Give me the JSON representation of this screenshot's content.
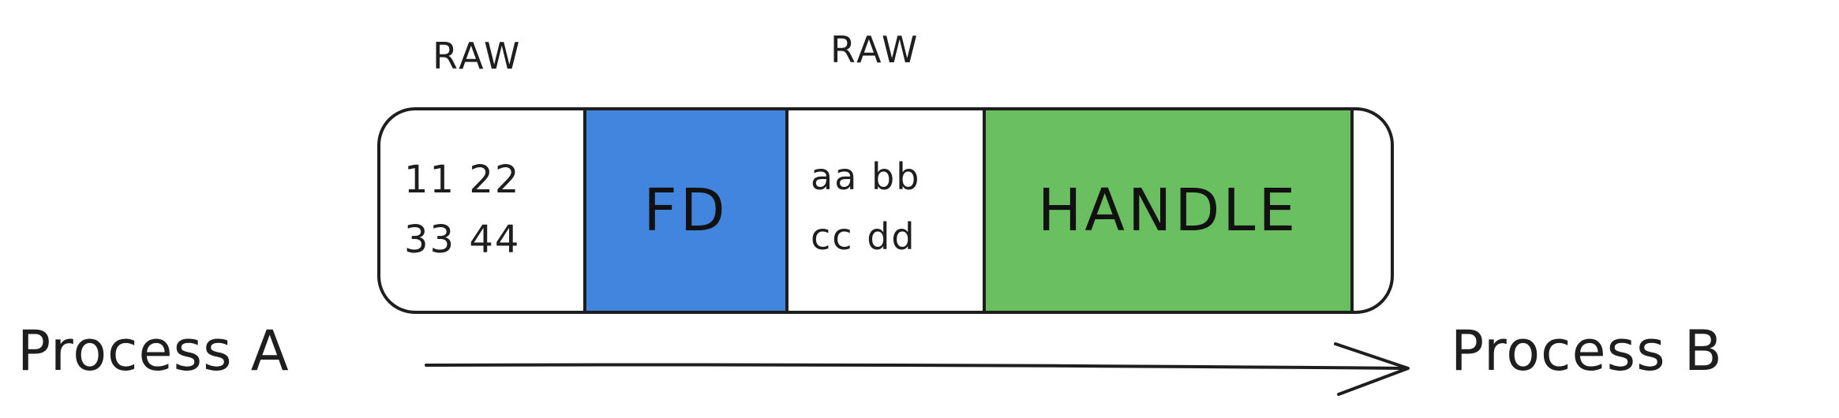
{
  "diagram": {
    "segments": [
      {
        "id": "raw1",
        "header": "RAW",
        "lines": [
          "11 22",
          "33 44"
        ]
      },
      {
        "id": "fd",
        "label": "FD",
        "color": "#4285de"
      },
      {
        "id": "raw2",
        "header": "RAW",
        "lines": [
          "aa bb",
          "cc dd"
        ]
      },
      {
        "id": "handle",
        "label": "HANDLE",
        "color": "#6abf61"
      }
    ],
    "source": "Process A",
    "destination": "Process B"
  }
}
